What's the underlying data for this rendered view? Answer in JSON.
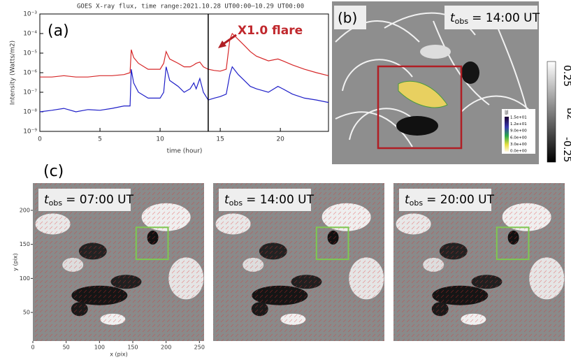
{
  "chart_data": {
    "type": "line",
    "title": "GOES X-ray flux, time range:2021.10.28 UT00:00–10.29 UT00:00",
    "panel_label": "(a)",
    "x_label": "time (hour)",
    "y_label": "Intensity (Watts/m2)",
    "annotation": "X1.0 flare",
    "marker_x": 14,
    "xlim": [
      0,
      24
    ],
    "xticks": [
      0,
      5,
      10,
      15,
      20
    ],
    "ylim": [
      1e-09,
      0.001
    ],
    "yscale": "log",
    "yticks": [
      {
        "value": 1e-09,
        "label": "10⁻⁹"
      },
      {
        "value": 1e-08,
        "label": "10⁻⁸"
      },
      {
        "value": 1e-07,
        "label": "10⁻⁷"
      },
      {
        "value": 1e-06,
        "label": "10⁻⁶"
      },
      {
        "value": 1e-05,
        "label": "10⁻⁵"
      },
      {
        "value": 0.0001,
        "label": "10⁻⁴"
      },
      {
        "value": 0.001,
        "label": "10⁻³"
      }
    ],
    "x": [
      0,
      1,
      2,
      3,
      4,
      5,
      6,
      7,
      7.5,
      7.6,
      7.8,
      8.2,
      9,
      10,
      10.3,
      10.5,
      10.8,
      11.5,
      12,
      12.5,
      12.8,
      13,
      13.3,
      13.6,
      14,
      14.5,
      15,
      15.5,
      15.8,
      16,
      16.5,
      17,
      17.5,
      18,
      19,
      19.8,
      20.2,
      21,
      22,
      23,
      24
    ],
    "series": [
      {
        "color": "#d62728",
        "values": [
          6e-07,
          6e-07,
          7e-07,
          6e-07,
          6e-07,
          7e-07,
          7e-07,
          8e-07,
          1e-06,
          1.5e-05,
          6e-06,
          3e-06,
          1.5e-06,
          1.5e-06,
          3e-06,
          1.2e-05,
          5e-06,
          3e-06,
          2e-06,
          2e-06,
          2.5e-06,
          3e-06,
          3.5e-06,
          2e-06,
          1.5e-06,
          1.3e-06,
          1.2e-06,
          1.5e-06,
          5e-05,
          0.0001,
          5e-05,
          2.5e-05,
          1.2e-05,
          7e-06,
          4e-06,
          5e-06,
          4e-06,
          2.5e-06,
          1.5e-06,
          1e-06,
          7e-07
        ]
      },
      {
        "color": "#1f1fc8",
        "values": [
          1e-08,
          1.2e-08,
          1.5e-08,
          1e-08,
          1.3e-08,
          1.2e-08,
          1.5e-08,
          2e-08,
          2e-08,
          1.5e-06,
          3e-07,
          1e-07,
          5e-08,
          5e-08,
          1e-07,
          2e-06,
          4e-07,
          2e-07,
          1e-07,
          1.5e-07,
          3e-07,
          1.5e-07,
          5e-07,
          1e-07,
          4e-08,
          5e-08,
          6e-08,
          8e-08,
          8e-07,
          2e-06,
          8e-07,
          4e-07,
          2e-07,
          1.5e-07,
          1e-07,
          2e-07,
          1.5e-07,
          8e-08,
          5e-08,
          4e-08,
          3e-08
        ]
      }
    ]
  },
  "panel_b": {
    "label": "(b)",
    "time": {
      "t": "t",
      "sub": "obs",
      "rest": "= 14:00 UT"
    },
    "colorbar": {
      "top": "0.25",
      "name": "Bz",
      "bottom": "-0.25"
    },
    "inset_colorbar": {
      "name": "|J|",
      "labels": [
        "1.5e+01",
        "1.2e+01",
        "9.0e+00",
        "6.0e+00",
        "3.0e+00",
        "0.0e+00"
      ]
    }
  },
  "panel_c": {
    "label": "(c)",
    "x_label": "x (pix)",
    "y_label": "y (pix)",
    "xlim": [
      0,
      257
    ],
    "xticks": [
      0,
      50,
      100,
      150,
      200,
      250
    ],
    "ylim": [
      8,
      240
    ],
    "yticks": [
      50,
      100,
      150,
      200
    ],
    "frames": [
      {
        "t": "t",
        "sub": "obs",
        "rest": "= 07:00 UT"
      },
      {
        "t": "t",
        "sub": "obs",
        "rest": "= 14:00 UT"
      },
      {
        "t": "t",
        "sub": "obs",
        "rest": "= 20:00 UT"
      }
    ]
  }
}
